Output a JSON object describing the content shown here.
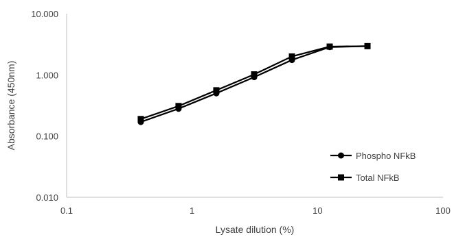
{
  "chart_data": {
    "type": "line",
    "xlabel": "Lysate dilution (%)",
    "ylabel": "Absorbance (450nm)",
    "x_scale": "log",
    "y_scale": "log",
    "xlim": [
      0.1,
      100
    ],
    "ylim": [
      0.01,
      10
    ],
    "x_ticks": [
      "0.1",
      "1",
      "10",
      "100"
    ],
    "y_ticks": [
      "0.010",
      "0.100",
      "1.000",
      "10.000"
    ],
    "grid": false,
    "legend_position": "bottom-right",
    "series": [
      {
        "name": "Phospho NFkB",
        "marker": "circle",
        "color": "#000000",
        "x": [
          0.39,
          0.78,
          1.56,
          3.125,
          6.25,
          12.5,
          25
        ],
        "y": [
          0.17,
          0.28,
          0.5,
          0.92,
          1.75,
          2.85,
          2.95
        ]
      },
      {
        "name": "Total NFkB",
        "marker": "square",
        "color": "#000000",
        "x": [
          0.39,
          0.78,
          1.56,
          3.125,
          6.25,
          12.5,
          25
        ],
        "y": [
          0.19,
          0.31,
          0.56,
          1.02,
          2.0,
          2.9,
          2.95
        ]
      }
    ]
  }
}
